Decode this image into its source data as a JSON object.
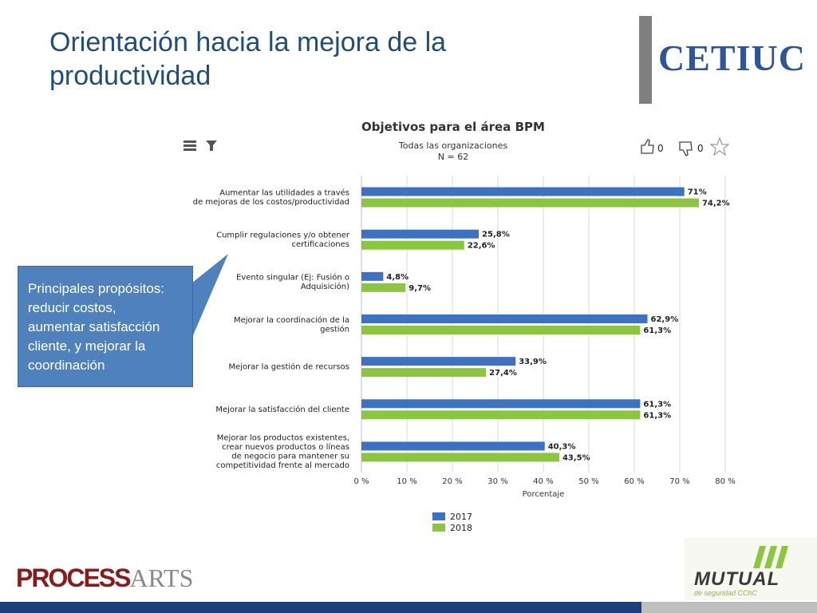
{
  "slide": {
    "title_line1": "Orientación hacia la mejora de la",
    "title_line2": "productividad",
    "logo": "CETIUC",
    "callout": [
      "Principales propósitos:",
      "reducir costos,",
      "aumentar satisfacción",
      "cliente, y mejorar la",
      "coordinación"
    ],
    "brand_left_bold": "PROCESS",
    "brand_left_light": "ARTS",
    "brand_right": "MUTUAL",
    "brand_right_sub": "de seguridad CChC"
  },
  "toolbar": {
    "menu_icon": "menu-icon",
    "filter_icon": "filter-icon",
    "like_icon": "thumbs-up-icon",
    "like_count": "0",
    "dislike_icon": "thumbs-down-icon",
    "dislike_count": "0",
    "star_icon": "star-icon"
  },
  "chart_data": {
    "type": "bar",
    "orientation": "horizontal",
    "title": "Objetivos para el área BPM",
    "subtitle_line1": "Todas las organizaciones",
    "subtitle_line2": "N = 62",
    "xlabel": "Porcentaje",
    "xlim": [
      0,
      80
    ],
    "xticks": [
      "0 %",
      "10 %",
      "20 %",
      "30 %",
      "40 %",
      "50 %",
      "60 %",
      "70 %",
      "80 %"
    ],
    "grid": true,
    "legend_position": "bottom",
    "categories": [
      [
        "Aumentar las utilidades a través",
        "de mejoras de los costos/productividad"
      ],
      [
        "Cumplir regulaciones y/o obtener",
        "certificaciones"
      ],
      [
        "Evento singular (Ej: Fusión o",
        "Adquisición)"
      ],
      [
        "Mejorar la coordinación de la",
        "gestión"
      ],
      [
        "Mejorar la gestión de recursos"
      ],
      [
        "Mejorar la satisfacción del cliente"
      ],
      [
        "Mejorar los productos existentes,",
        "crear nuevos productos o líneas",
        "de negocio para mantener su",
        "competitividad frente al mercado"
      ]
    ],
    "series": [
      {
        "name": "2017",
        "color": "#3b72c4",
        "values": [
          71,
          25.8,
          4.8,
          62.9,
          33.9,
          61.3,
          40.3
        ],
        "labels": [
          "71%",
          "25,8%",
          "4,8%",
          "62,9%",
          "33,9%",
          "61,3%",
          "40,3%"
        ]
      },
      {
        "name": "2018",
        "color": "#8cc63f",
        "values": [
          74.2,
          22.6,
          9.7,
          61.3,
          27.4,
          61.3,
          43.5
        ],
        "labels": [
          "74,2%",
          "22,6%",
          "9,7%",
          "61,3%",
          "27,4%",
          "61,3%",
          "43,5%"
        ]
      }
    ]
  }
}
